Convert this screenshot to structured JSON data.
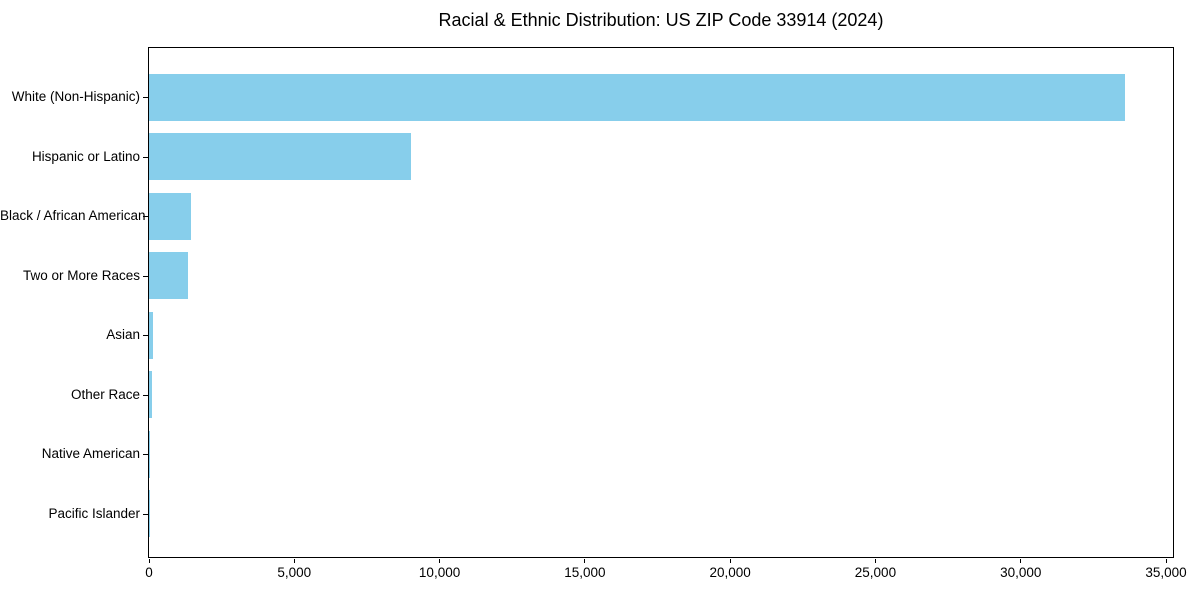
{
  "chart_data": {
    "type": "bar",
    "orientation": "horizontal",
    "title": "Racial & Ethnic Distribution: US ZIP Code 33914 (2024)",
    "categories": [
      "White (Non-Hispanic)",
      "Hispanic or Latino",
      "Black / African American",
      "Two or More Races",
      "Asian",
      "Other Race",
      "Native American",
      "Pacific Islander"
    ],
    "values": [
      33600,
      9000,
      1440,
      1330,
      140,
      100,
      30,
      15
    ],
    "xlabel": "",
    "ylabel": "",
    "xlim": [
      0,
      35240
    ],
    "x_ticks": [
      0,
      5000,
      10000,
      15000,
      20000,
      25000,
      30000,
      35000
    ],
    "x_tick_labels": [
      "0",
      "5,000",
      "10,000",
      "15,000",
      "20,000",
      "25,000",
      "30,000",
      "35,000"
    ],
    "bar_color": "#87CEEB",
    "axis_color": "#000000",
    "grid": false,
    "legend_position": "none"
  }
}
